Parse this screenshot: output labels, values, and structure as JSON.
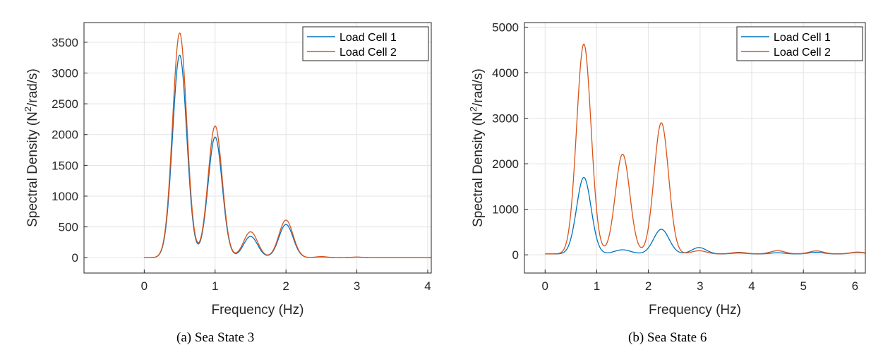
{
  "chart_data": [
    {
      "type": "line",
      "caption": "(a)  Sea State 3",
      "xlabel": "Frequency (Hz)",
      "ylabel_main": "Spectral Density (N",
      "ylabel_sup": "2",
      "ylabel_tail": "/rad/s)",
      "xlim": [
        -0.85,
        4.05
      ],
      "ylim": [
        -250,
        3820
      ],
      "xticks": [
        0,
        1,
        2,
        3,
        4
      ],
      "yticks": [
        0,
        500,
        1000,
        1500,
        2000,
        2500,
        3000,
        3500
      ],
      "grid": true,
      "legend_position": "top-right",
      "series": [
        {
          "name": "Load Cell 1",
          "color": "#0072BD",
          "baseline": 0,
          "peaks": [
            {
              "center": 0.5,
              "height": 3290,
              "width": 0.1
            },
            {
              "center": 1.0,
              "height": 1960,
              "width": 0.1
            },
            {
              "center": 1.5,
              "height": 345,
              "width": 0.1
            },
            {
              "center": 2.0,
              "height": 540,
              "width": 0.1
            },
            {
              "center": 2.5,
              "height": 12,
              "width": 0.08
            },
            {
              "center": 3.0,
              "height": 8,
              "width": 0.08
            }
          ]
        },
        {
          "name": "Load Cell 2",
          "color": "#D95319",
          "baseline": 0,
          "peaks": [
            {
              "center": 0.5,
              "height": 3650,
              "width": 0.1
            },
            {
              "center": 1.0,
              "height": 2140,
              "width": 0.1
            },
            {
              "center": 1.5,
              "height": 420,
              "width": 0.1
            },
            {
              "center": 2.0,
              "height": 610,
              "width": 0.1
            },
            {
              "center": 2.5,
              "height": 18,
              "width": 0.08
            },
            {
              "center": 3.0,
              "height": 10,
              "width": 0.08
            }
          ]
        }
      ]
    },
    {
      "type": "line",
      "caption": "(b)  Sea State 6",
      "xlabel": "Frequency (Hz)",
      "ylabel_main": "Spectral Density (N",
      "ylabel_sup": "2",
      "ylabel_tail": "/rad/s)",
      "xlim": [
        -0.4,
        6.2
      ],
      "ylim": [
        -400,
        5100
      ],
      "xticks": [
        0,
        1,
        2,
        3,
        4,
        5,
        6
      ],
      "yticks": [
        0,
        1000,
        2000,
        3000,
        4000,
        5000
      ],
      "grid": true,
      "legend_position": "top-right",
      "series": [
        {
          "name": "Load Cell 1",
          "color": "#0072BD",
          "baseline": 20,
          "peaks": [
            {
              "center": 0.75,
              "height": 1680,
              "width": 0.14
            },
            {
              "center": 1.5,
              "height": 90,
              "width": 0.16
            },
            {
              "center": 2.25,
              "height": 540,
              "width": 0.15
            },
            {
              "center": 2.98,
              "height": 140,
              "width": 0.14
            },
            {
              "center": 3.75,
              "height": 20,
              "width": 0.14
            },
            {
              "center": 4.5,
              "height": 25,
              "width": 0.14
            },
            {
              "center": 5.25,
              "height": 35,
              "width": 0.14
            },
            {
              "center": 6.05,
              "height": 30,
              "width": 0.14
            }
          ]
        },
        {
          "name": "Load Cell 2",
          "color": "#D95319",
          "baseline": 20,
          "peaks": [
            {
              "center": 0.75,
              "height": 4610,
              "width": 0.14
            },
            {
              "center": 1.5,
              "height": 2190,
              "width": 0.14
            },
            {
              "center": 2.25,
              "height": 2880,
              "width": 0.14
            },
            {
              "center": 2.98,
              "height": 70,
              "width": 0.14
            },
            {
              "center": 3.75,
              "height": 35,
              "width": 0.14
            },
            {
              "center": 4.5,
              "height": 70,
              "width": 0.14
            },
            {
              "center": 5.25,
              "height": 65,
              "width": 0.14
            },
            {
              "center": 6.05,
              "height": 40,
              "width": 0.14
            }
          ]
        }
      ]
    }
  ]
}
